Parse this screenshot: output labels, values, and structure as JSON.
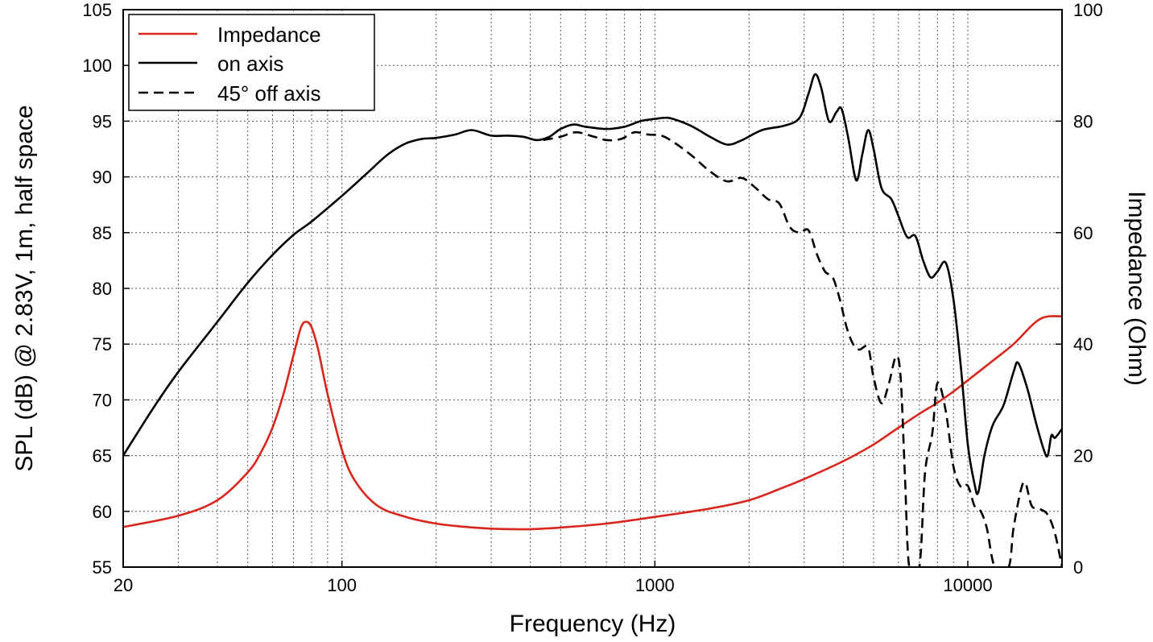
{
  "chart_data": {
    "type": "line",
    "title": "",
    "xlabel": "Frequency (Hz)",
    "ylabel": "SPL (dB) @ 2.83V, 1m, half space",
    "y2label": "Impedance (Ohm)",
    "xscale": "log",
    "xlim": [
      20,
      20000
    ],
    "ylim": [
      55,
      105
    ],
    "y2lim": [
      0,
      100
    ],
    "grid": true,
    "legend_position": "top-left",
    "x_ticks": [
      {
        "value": 20,
        "label": "20"
      },
      {
        "value": 100,
        "label": "100"
      },
      {
        "value": 1000,
        "label": "1000"
      },
      {
        "value": 10000,
        "label": "10000"
      }
    ],
    "y_ticks": [
      {
        "value": 55,
        "label": "55"
      },
      {
        "value": 60,
        "label": "60"
      },
      {
        "value": 65,
        "label": "65"
      },
      {
        "value": 70,
        "label": "70"
      },
      {
        "value": 75,
        "label": "75"
      },
      {
        "value": 80,
        "label": "80"
      },
      {
        "value": 85,
        "label": "85"
      },
      {
        "value": 90,
        "label": "90"
      },
      {
        "value": 95,
        "label": "95"
      },
      {
        "value": 100,
        "label": "100"
      },
      {
        "value": 105,
        "label": "105"
      }
    ],
    "y2_ticks": [
      {
        "value": 0,
        "label": "0"
      },
      {
        "value": 20,
        "label": "20"
      },
      {
        "value": 40,
        "label": "40"
      },
      {
        "value": 60,
        "label": "60"
      },
      {
        "value": 80,
        "label": "80"
      },
      {
        "value": 100,
        "label": "100"
      }
    ],
    "series": [
      {
        "name": "Impedance",
        "axis": "right",
        "color": "#d9261c",
        "dash": "solid",
        "points": [
          [
            20,
            7.2
          ],
          [
            30,
            9.2
          ],
          [
            40,
            12.0
          ],
          [
            50,
            17.0
          ],
          [
            55,
            20.5
          ],
          [
            60,
            25.0
          ],
          [
            65,
            31.0
          ],
          [
            70,
            38.0
          ],
          [
            74,
            43.0
          ],
          [
            77,
            44.0
          ],
          [
            80,
            43.0
          ],
          [
            84,
            39.0
          ],
          [
            90,
            31.0
          ],
          [
            100,
            21.0
          ],
          [
            110,
            15.5
          ],
          [
            130,
            11.0
          ],
          [
            160,
            9.0
          ],
          [
            200,
            7.8
          ],
          [
            250,
            7.2
          ],
          [
            300,
            6.9
          ],
          [
            350,
            6.8
          ],
          [
            400,
            6.8
          ],
          [
            500,
            7.1
          ],
          [
            700,
            7.8
          ],
          [
            1000,
            9.0
          ],
          [
            1500,
            10.5
          ],
          [
            2000,
            12.0
          ],
          [
            2500,
            14.0
          ],
          [
            3000,
            15.8
          ],
          [
            4000,
            19.0
          ],
          [
            5000,
            22.0
          ],
          [
            6000,
            25.0
          ],
          [
            7000,
            27.5
          ],
          [
            8000,
            29.5
          ],
          [
            9000,
            31.5
          ],
          [
            10000,
            33.5
          ],
          [
            12000,
            37.0
          ],
          [
            14000,
            40.0
          ],
          [
            17000,
            44.5
          ],
          [
            20000,
            45.0
          ]
        ]
      },
      {
        "name": "on axis",
        "axis": "left",
        "color": "#000000",
        "dash": "solid",
        "points": [
          [
            20,
            65.0
          ],
          [
            25,
            69.3
          ],
          [
            30,
            72.5
          ],
          [
            40,
            77.0
          ],
          [
            50,
            80.5
          ],
          [
            60,
            83.0
          ],
          [
            70,
            84.8
          ],
          [
            80,
            86.0
          ],
          [
            100,
            88.3
          ],
          [
            120,
            90.3
          ],
          [
            140,
            92.0
          ],
          [
            160,
            93.0
          ],
          [
            180,
            93.4
          ],
          [
            200,
            93.5
          ],
          [
            230,
            93.8
          ],
          [
            260,
            94.2
          ],
          [
            300,
            93.7
          ],
          [
            340,
            93.7
          ],
          [
            380,
            93.6
          ],
          [
            420,
            93.3
          ],
          [
            460,
            93.6
          ],
          [
            500,
            94.3
          ],
          [
            550,
            94.7
          ],
          [
            600,
            94.5
          ],
          [
            700,
            94.3
          ],
          [
            800,
            94.5
          ],
          [
            900,
            95.0
          ],
          [
            1000,
            95.2
          ],
          [
            1100,
            95.3
          ],
          [
            1200,
            95.0
          ],
          [
            1300,
            94.6
          ],
          [
            1400,
            94.1
          ],
          [
            1500,
            93.6
          ],
          [
            1700,
            92.9
          ],
          [
            1900,
            93.3
          ],
          [
            2200,
            94.2
          ],
          [
            2600,
            94.6
          ],
          [
            2900,
            95.3
          ],
          [
            3100,
            97.5
          ],
          [
            3250,
            99.2
          ],
          [
            3400,
            98.0
          ],
          [
            3600,
            95.0
          ],
          [
            3800,
            95.8
          ],
          [
            3950,
            96.1
          ],
          [
            4150,
            93.5
          ],
          [
            4400,
            89.7
          ],
          [
            4600,
            92.0
          ],
          [
            4800,
            94.2
          ],
          [
            5000,
            92.5
          ],
          [
            5300,
            89.0
          ],
          [
            5700,
            88.0
          ],
          [
            6000,
            86.5
          ],
          [
            6400,
            84.6
          ],
          [
            6800,
            84.7
          ],
          [
            7200,
            82.5
          ],
          [
            7600,
            81.0
          ],
          [
            8000,
            81.5
          ],
          [
            8500,
            82.3
          ],
          [
            9000,
            79.0
          ],
          [
            9500,
            73.0
          ],
          [
            10000,
            66.0
          ],
          [
            10500,
            62.5
          ],
          [
            10800,
            61.7
          ],
          [
            11300,
            65.0
          ],
          [
            12000,
            67.7
          ],
          [
            13000,
            69.5
          ],
          [
            14000,
            72.5
          ],
          [
            14500,
            73.3
          ],
          [
            15500,
            71.0
          ],
          [
            16500,
            68.0
          ],
          [
            17500,
            65.5
          ],
          [
            18000,
            65.0
          ],
          [
            18500,
            66.8
          ],
          [
            19000,
            66.6
          ],
          [
            20000,
            67.4
          ]
        ]
      },
      {
        "name": "45° off axis",
        "axis": "left",
        "color": "#000000",
        "dash": "dashed",
        "points": [
          [
            440,
            93.3
          ],
          [
            500,
            93.6
          ],
          [
            560,
            94.0
          ],
          [
            640,
            93.6
          ],
          [
            700,
            93.3
          ],
          [
            780,
            93.4
          ],
          [
            860,
            94.0
          ],
          [
            950,
            93.8
          ],
          [
            1050,
            93.7
          ],
          [
            1150,
            93.1
          ],
          [
            1300,
            92.0
          ],
          [
            1500,
            90.5
          ],
          [
            1700,
            89.6
          ],
          [
            1900,
            89.9
          ],
          [
            2100,
            89.0
          ],
          [
            2300,
            88.0
          ],
          [
            2500,
            87.6
          ],
          [
            2700,
            85.5
          ],
          [
            2900,
            85.0
          ],
          [
            3100,
            85.2
          ],
          [
            3300,
            83.0
          ],
          [
            3500,
            81.5
          ],
          [
            3700,
            81.0
          ],
          [
            3900,
            79.0
          ],
          [
            4100,
            76.5
          ],
          [
            4300,
            75.0
          ],
          [
            4500,
            74.5
          ],
          [
            4800,
            74.7
          ],
          [
            5000,
            72.0
          ],
          [
            5300,
            69.7
          ],
          [
            5600,
            71.5
          ],
          [
            5900,
            73.9
          ],
          [
            6100,
            72.0
          ],
          [
            6300,
            63.0
          ],
          [
            6500,
            55.0
          ],
          [
            7000,
            55.0
          ],
          [
            7300,
            63.5
          ],
          [
            7700,
            67.0
          ],
          [
            8000,
            71.5
          ],
          [
            8500,
            69.0
          ],
          [
            9000,
            64.0
          ],
          [
            9500,
            62.2
          ],
          [
            10000,
            62.3
          ],
          [
            10500,
            60.5
          ],
          [
            11000,
            60.0
          ],
          [
            11500,
            58.5
          ],
          [
            12200,
            55.0
          ],
          [
            13500,
            55.0
          ],
          [
            14000,
            58.5
          ],
          [
            14800,
            62.0
          ],
          [
            15300,
            62.5
          ],
          [
            16000,
            60.5
          ],
          [
            17000,
            60.2
          ],
          [
            18000,
            59.7
          ],
          [
            19000,
            58.0
          ],
          [
            20000,
            55.0
          ]
        ]
      }
    ]
  }
}
